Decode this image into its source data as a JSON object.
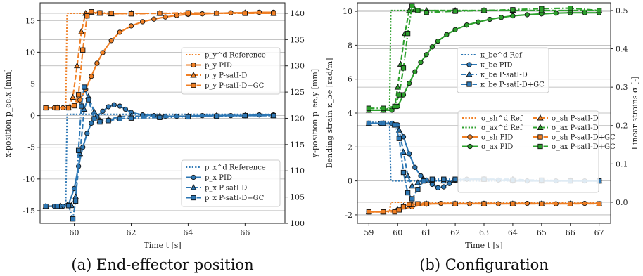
{
  "chart_data": [
    {
      "type": "line",
      "caption": "(a) End-effector position",
      "xlabel": "Time t [s]",
      "ylabel": "x-position p_ee,x [mm]",
      "y2label": "y-position p_ee,y [mm]",
      "xlim": [
        58.8,
        67.4
      ],
      "ylim": [
        -17,
        17.8
      ],
      "y2lim": [
        100,
        142
      ],
      "xticks": [
        60,
        62,
        64,
        66
      ],
      "yticks": [
        -15,
        -10,
        -5,
        0,
        5,
        10,
        15
      ],
      "y2ticks": [
        100,
        105,
        110,
        115,
        120,
        125,
        130,
        135,
        140
      ],
      "grid": true,
      "legend_placement": [
        "center-right",
        "bottom-right"
      ],
      "series": [
        {
          "name": "p_y^d Reference",
          "axis": "y2",
          "color": "#f07f24",
          "style": "dotted",
          "marker": "none",
          "x": [
            59.0,
            59.7,
            59.75,
            67.0
          ],
          "y": [
            122.0,
            122.0,
            140.0,
            140.0
          ]
        },
        {
          "name": "p_y PID",
          "axis": "y2",
          "color": "#f07f24",
          "style": "solid",
          "marker": "circle",
          "x": [
            59.0,
            59.3,
            59.6,
            59.8,
            60.0,
            60.2,
            60.4,
            60.6,
            60.8,
            61.0,
            61.3,
            61.6,
            62.0,
            62.4,
            62.8,
            63.2,
            63.6,
            64.0,
            64.5,
            65.0,
            65.5,
            66.0,
            66.5,
            67.0
          ],
          "y": [
            122.0,
            122.0,
            122.0,
            122.0,
            122.5,
            123.5,
            125.5,
            128.0,
            130.5,
            132.5,
            134.8,
            136.4,
            137.6,
            138.4,
            138.9,
            139.3,
            139.6,
            139.8,
            139.9,
            140.0,
            140.1,
            140.1,
            140.2,
            140.2
          ]
        },
        {
          "name": "p_y P-satI-D",
          "axis": "y2",
          "color": "#f07f24",
          "style": "dashed",
          "marker": "triangle",
          "x": [
            59.0,
            59.4,
            59.8,
            59.95,
            60.1,
            60.25,
            60.4,
            60.6,
            60.9,
            61.3,
            62.0,
            63.0,
            64.0,
            65.0,
            66.0,
            67.0
          ],
          "y": [
            122.0,
            122.0,
            122.0,
            124.0,
            130.0,
            136.5,
            140.0,
            140.2,
            140.0,
            139.9,
            140.0,
            140.0,
            140.0,
            140.0,
            140.1,
            140.0
          ]
        },
        {
          "name": "p_y P-satI-D+GC",
          "axis": "y2",
          "color": "#f07f24",
          "style": "dashdot",
          "marker": "square",
          "x": [
            59.0,
            59.4,
            59.8,
            60.0,
            60.15,
            60.3,
            60.45,
            60.6,
            60.9,
            61.3,
            62.0,
            63.0,
            64.0,
            65.0,
            66.0,
            67.0
          ],
          "y": [
            122.0,
            122.0,
            122.0,
            122.4,
            124.5,
            133.0,
            139.5,
            140.3,
            140.1,
            140.0,
            139.9,
            140.0,
            140.1,
            140.0,
            140.0,
            140.0
          ]
        },
        {
          "name": "p_x^d Reference",
          "axis": "y",
          "color": "#2d77b4",
          "style": "dotted",
          "marker": "none",
          "x": [
            59.0,
            59.7,
            59.75,
            67.0
          ],
          "y": [
            -14.3,
            -14.3,
            0.2,
            0.2
          ]
        },
        {
          "name": "p_x PID",
          "axis": "y",
          "color": "#2d77b4",
          "style": "solid",
          "marker": "circle",
          "x": [
            59.0,
            59.3,
            59.6,
            59.8,
            60.0,
            60.15,
            60.3,
            60.45,
            60.6,
            60.8,
            61.0,
            61.2,
            61.4,
            61.6,
            61.8,
            62.0,
            62.4,
            62.8,
            63.2,
            63.6,
            64.0,
            64.5,
            65.0,
            65.5,
            66.0,
            66.5,
            67.0
          ],
          "y": [
            -14.3,
            -14.3,
            -14.3,
            -14.0,
            -11.5,
            -8.0,
            -5.0,
            -2.8,
            -1.2,
            -0.2,
            0.7,
            1.4,
            1.7,
            1.5,
            1.0,
            0.5,
            0.1,
            0.0,
            -0.1,
            -0.1,
            -0.1,
            0.0,
            0.0,
            0.0,
            0.0,
            0.1,
            0.1
          ]
        },
        {
          "name": "p_x P-satI-D",
          "axis": "y",
          "color": "#2d77b4",
          "style": "dashed",
          "marker": "triangle",
          "x": [
            59.0,
            59.5,
            59.9,
            60.05,
            60.2,
            60.35,
            60.5,
            60.7,
            60.9,
            61.2,
            61.6,
            62.0,
            63.0,
            64.0,
            65.0,
            66.0,
            67.0
          ],
          "y": [
            -14.3,
            -14.3,
            -14.2,
            -12.8,
            -6.0,
            1.0,
            3.0,
            0.6,
            -0.8,
            -0.6,
            -0.2,
            -0.1,
            -0.1,
            -0.1,
            0.0,
            0.0,
            0.0
          ]
        },
        {
          "name": "p_x P-satI-D+GC",
          "axis": "y",
          "color": "#2d77b4",
          "style": "dashdot",
          "marker": "square",
          "x": [
            59.0,
            59.4,
            59.8,
            59.95,
            60.05,
            60.15,
            60.25,
            60.35,
            60.5,
            60.7,
            60.9,
            61.2,
            61.6,
            62.0,
            63.0,
            64.0,
            65.0,
            66.0,
            67.0
          ],
          "y": [
            -14.3,
            -14.3,
            -14.2,
            -16.3,
            -13.5,
            -5.5,
            1.5,
            4.5,
            2.5,
            -0.5,
            -1.0,
            -0.8,
            -0.5,
            -0.4,
            -0.3,
            -0.2,
            -0.1,
            0.0,
            0.0
          ]
        }
      ]
    },
    {
      "type": "line",
      "caption": "(b) Configuration",
      "xlabel": "Time t [s]",
      "ylabel": "Bending strain κ_be [rad/m]",
      "y2label": "Linear strains σ [-]",
      "xlim": [
        58.6,
        67.4
      ],
      "ylim": [
        -2.5,
        10.5
      ],
      "y2lim": [
        -0.055,
        0.52
      ],
      "xticks": [
        59,
        60,
        61,
        62,
        63,
        64,
        65,
        66,
        67
      ],
      "yticks": [
        -2,
        0,
        2,
        4,
        6,
        8,
        10
      ],
      "y2ticks": [
        0.0,
        0.1,
        0.2,
        0.3,
        0.4,
        0.5
      ],
      "grid": true,
      "legend_placement": [
        "center-left",
        "center-right"
      ],
      "series": [
        {
          "name": "κ_be^d Ref",
          "axis": "y",
          "color": "#2d77b4",
          "style": "dotted",
          "marker": "none",
          "x": [
            59.0,
            59.72,
            59.76,
            67.0
          ],
          "y": [
            3.45,
            3.45,
            0.0,
            0.0
          ]
        },
        {
          "name": "κ_be PID",
          "axis": "y",
          "color": "#2d77b4",
          "style": "solid",
          "marker": "circle",
          "x": [
            59.0,
            59.4,
            59.8,
            60.0,
            60.2,
            60.4,
            60.6,
            60.8,
            61.0,
            61.2,
            61.4,
            61.6,
            61.8,
            62.0,
            62.4,
            63.0,
            63.5,
            64.0,
            64.5,
            65.0,
            65.5,
            66.0,
            66.5,
            67.0
          ],
          "y": [
            3.4,
            3.4,
            3.4,
            3.3,
            2.6,
            1.6,
            0.8,
            0.3,
            0.05,
            -0.2,
            -0.4,
            -0.35,
            -0.15,
            0.05,
            0.1,
            0.1,
            0.05,
            0.0,
            0.0,
            0.0,
            0.0,
            0.0,
            0.0,
            0.0
          ]
        },
        {
          "name": "κ_be P-satI-D",
          "axis": "y",
          "color": "#2d77b4",
          "style": "dashed",
          "marker": "triangle",
          "x": [
            59.0,
            59.5,
            59.9,
            60.05,
            60.2,
            60.35,
            60.5,
            60.7,
            60.9,
            61.2,
            61.6,
            62.0,
            63.0,
            64.0,
            65.0,
            66.0,
            67.0
          ],
          "y": [
            3.4,
            3.4,
            3.3,
            3.0,
            1.7,
            0.3,
            -0.3,
            -0.1,
            0.1,
            0.05,
            0.0,
            0.05,
            0.1,
            0.1,
            0.0,
            0.0,
            0.0
          ]
        },
        {
          "name": "κ_be P-satI-D+GC",
          "axis": "y",
          "color": "#2d77b4",
          "style": "dashdot",
          "marker": "square",
          "x": [
            59.0,
            59.5,
            59.9,
            60.05,
            60.2,
            60.35,
            60.5,
            60.7,
            60.9,
            61.2,
            61.6,
            62.0,
            63.0,
            64.0,
            65.0,
            66.0,
            67.0
          ],
          "y": [
            3.4,
            3.4,
            3.3,
            2.5,
            0.5,
            -0.7,
            -1.05,
            -0.5,
            0.0,
            0.1,
            0.1,
            0.1,
            0.1,
            0.05,
            0.05,
            0.0,
            0.0
          ]
        },
        {
          "name": "σ_sh^d Ref",
          "axis": "y2",
          "color": "#f07f24",
          "style": "dotted",
          "marker": "none",
          "x": [
            59.0,
            59.72,
            59.76,
            67.0
          ],
          "y": [
            -0.025,
            -0.025,
            0.0,
            0.0
          ]
        },
        {
          "name": "σ_ax^d Ref",
          "axis": "y2",
          "color": "#2ca02c",
          "style": "dotted",
          "marker": "none",
          "x": [
            59.0,
            59.72,
            59.76,
            67.0
          ],
          "y": [
            0.24,
            0.24,
            0.5,
            0.5
          ]
        },
        {
          "name": "σ_sh PID",
          "axis": "y2",
          "color": "#f07f24",
          "style": "solid",
          "marker": "circle",
          "x": [
            59.0,
            59.5,
            60.0,
            60.5,
            61.0,
            61.5,
            62.0,
            62.5,
            63.0,
            63.5,
            64.0,
            64.5,
            65.0,
            65.5,
            66.0,
            66.5,
            67.0
          ],
          "y": [
            -0.025,
            -0.025,
            -0.02,
            -0.012,
            -0.005,
            -0.003,
            -0.004,
            -0.004,
            -0.003,
            -0.004,
            -0.004,
            -0.003,
            -0.004,
            -0.004,
            -0.004,
            -0.003,
            -0.004
          ]
        },
        {
          "name": "σ_ax PID",
          "axis": "y2",
          "color": "#2ca02c",
          "style": "solid",
          "marker": "circle",
          "x": [
            59.0,
            59.5,
            59.8,
            60.0,
            60.2,
            60.4,
            60.6,
            60.8,
            61.0,
            61.2,
            61.4,
            61.7,
            62.0,
            62.4,
            62.8,
            63.2,
            63.6,
            64.0,
            64.5,
            65.0,
            65.5,
            66.0,
            66.5,
            67.0
          ],
          "y": [
            0.24,
            0.24,
            0.24,
            0.25,
            0.28,
            0.31,
            0.34,
            0.365,
            0.385,
            0.405,
            0.42,
            0.437,
            0.45,
            0.462,
            0.47,
            0.477,
            0.482,
            0.486,
            0.489,
            0.491,
            0.493,
            0.494,
            0.494,
            0.494
          ]
        },
        {
          "name": "σ_sh P-satI-D",
          "axis": "y2",
          "color": "#f07f24",
          "style": "dashed",
          "marker": "triangle",
          "x": [
            59.0,
            59.5,
            60.0,
            60.2,
            60.5,
            61.0,
            62.0,
            63.0,
            64.0,
            65.0,
            66.0,
            67.0
          ],
          "y": [
            -0.025,
            -0.025,
            -0.02,
            -0.01,
            -0.006,
            -0.004,
            -0.004,
            -0.004,
            -0.004,
            -0.004,
            -0.004,
            -0.004
          ]
        },
        {
          "name": "σ_ax P-satI-D",
          "axis": "y2",
          "color": "#2ca02c",
          "style": "dashed",
          "marker": "triangle",
          "x": [
            59.0,
            59.5,
            59.9,
            60.0,
            60.1,
            60.25,
            60.4,
            60.6,
            61.0,
            62.0,
            63.0,
            64.0,
            65.0,
            66.0,
            67.0
          ],
          "y": [
            0.24,
            0.24,
            0.25,
            0.3,
            0.36,
            0.44,
            0.5,
            0.502,
            0.5,
            0.5,
            0.5,
            0.5,
            0.5,
            0.5,
            0.5
          ]
        },
        {
          "name": "σ_sh P-satI-D+GC",
          "axis": "y2",
          "color": "#f07f24",
          "style": "dashdot",
          "marker": "square",
          "x": [
            59.0,
            59.5,
            59.9,
            60.05,
            60.2,
            60.4,
            60.7,
            61.0,
            62.0,
            63.0,
            64.0,
            65.0,
            66.0,
            67.0
          ],
          "y": [
            -0.025,
            -0.025,
            -0.025,
            -0.02,
            -0.012,
            -0.006,
            -0.004,
            -0.004,
            -0.004,
            -0.004,
            -0.004,
            -0.004,
            -0.004,
            -0.004
          ]
        },
        {
          "name": "σ_ax P-satI-D+GC",
          "axis": "y2",
          "color": "#2ca02c",
          "style": "dashdot",
          "marker": "square",
          "x": [
            59.0,
            59.5,
            59.9,
            60.05,
            60.2,
            60.35,
            60.5,
            60.7,
            61.0,
            62.0,
            63.0,
            64.0,
            65.0,
            66.0,
            67.0
          ],
          "y": [
            0.245,
            0.245,
            0.25,
            0.28,
            0.35,
            0.44,
            0.512,
            0.5,
            0.495,
            0.498,
            0.5,
            0.502,
            0.505,
            0.506,
            0.5
          ]
        }
      ]
    }
  ]
}
